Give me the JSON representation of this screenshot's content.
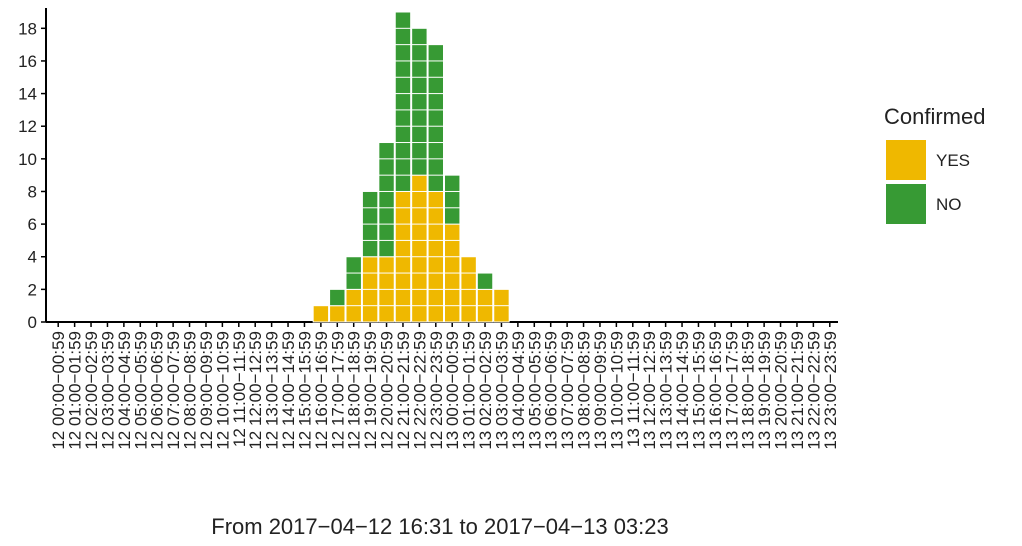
{
  "chart_data": {
    "type": "bar",
    "stacked": true,
    "x_label": "From 2017−04−12 16:31 to 2017−04−13 03:23",
    "legend_title": "Confirmed",
    "categories": [
      "12 00:00−00:59",
      "12 01:00−01:59",
      "12 02:00−02:59",
      "12 03:00−03:59",
      "12 04:00−04:59",
      "12 05:00−05:59",
      "12 06:00−06:59",
      "12 07:00−07:59",
      "12 08:00−08:59",
      "12 09:00−09:59",
      "12 10:00−10:59",
      "12 11:00−11:59",
      "12 12:00−12:59",
      "12 13:00−13:59",
      "12 14:00−14:59",
      "12 15:00−15:59",
      "12 16:00−16:59",
      "12 17:00−17:59",
      "12 18:00−18:59",
      "12 19:00−19:59",
      "12 20:00−20:59",
      "12 21:00−21:59",
      "12 22:00−22:59",
      "12 23:00−23:59",
      "13 00:00−00:59",
      "13 01:00−01:59",
      "13 02:00−02:59",
      "13 03:00−03:59",
      "13 04:00−04:59",
      "13 05:00−05:59",
      "13 06:00−06:59",
      "13 07:00−07:59",
      "13 08:00−08:59",
      "13 09:00−09:59",
      "13 10:00−10:59",
      "13 11:00−11:59",
      "13 12:00−12:59",
      "13 13:00−13:59",
      "13 14:00−14:59",
      "13 15:00−15:59",
      "13 16:00−16:59",
      "13 17:00−17:59",
      "13 18:00−18:59",
      "13 19:00−19:59",
      "13 20:00−20:59",
      "13 21:00−21:59",
      "13 22:00−22:59",
      "13 23:00−23:59"
    ],
    "series": [
      {
        "name": "YES",
        "color": "#efb800",
        "values": [
          0,
          0,
          0,
          0,
          0,
          0,
          0,
          0,
          0,
          0,
          0,
          0,
          0,
          0,
          0,
          0,
          1,
          1,
          2,
          4,
          4,
          8,
          9,
          8,
          6,
          4,
          2,
          2,
          0,
          0,
          0,
          0,
          0,
          0,
          0,
          0,
          0,
          0,
          0,
          0,
          0,
          0,
          0,
          0,
          0,
          0,
          0,
          0
        ]
      },
      {
        "name": "NO",
        "color": "#379a34",
        "values": [
          0,
          0,
          0,
          0,
          0,
          0,
          0,
          0,
          0,
          0,
          0,
          0,
          0,
          0,
          0,
          0,
          0,
          1,
          2,
          4,
          7,
          11,
          9,
          9,
          3,
          0,
          1,
          0,
          0,
          0,
          0,
          0,
          0,
          0,
          0,
          0,
          0,
          0,
          0,
          0,
          0,
          0,
          0,
          0,
          0,
          0,
          0,
          0
        ]
      }
    ],
    "ylim": [
      0,
      19
    ],
    "yticks": [
      0,
      2,
      4,
      6,
      8,
      10,
      12,
      14,
      16,
      18
    ]
  }
}
